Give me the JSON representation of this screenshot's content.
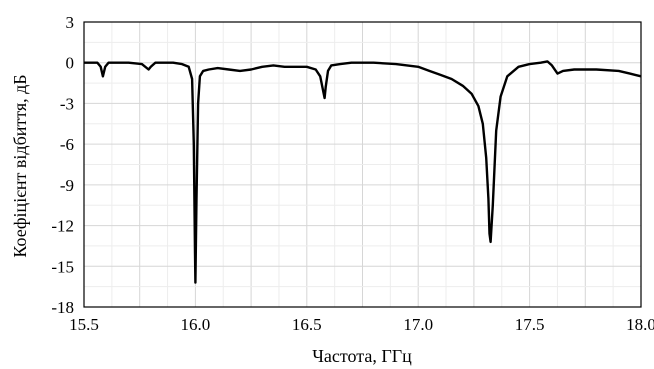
{
  "chart_data": {
    "type": "line",
    "title": "",
    "xlabel": "Частота, ГГц",
    "ylabel": "Коефіцієнт відбиття, дБ",
    "xlim": [
      15.5,
      18.0
    ],
    "ylim": [
      -18,
      3
    ],
    "xticks": [
      15.5,
      15.75,
      16.0,
      16.25,
      16.5,
      16.75,
      17.0,
      17.25,
      17.5,
      17.75,
      18.0
    ],
    "xtick_labels": [
      "15.5",
      "",
      "16.0",
      "",
      "16.5",
      "",
      "17.0",
      "",
      "17.5",
      "",
      "18.0"
    ],
    "yticks": [
      3,
      0,
      -3,
      -6,
      -9,
      -12,
      -15,
      -18
    ],
    "ytick_labels": [
      "3",
      "0",
      "-3",
      "-6",
      "-9",
      "-12",
      "-15",
      "-18"
    ],
    "grid": true,
    "series": [
      {
        "color": "#000000",
        "x": [
          15.5,
          15.56,
          15.575,
          15.585,
          15.595,
          15.61,
          15.65,
          15.7,
          15.76,
          15.79,
          15.8,
          15.82,
          15.85,
          15.9,
          15.94,
          15.97,
          15.985,
          15.993,
          15.998,
          16.0,
          16.005,
          16.012,
          16.02,
          16.035,
          16.06,
          16.1,
          16.15,
          16.2,
          16.25,
          16.3,
          16.35,
          16.4,
          16.45,
          16.5,
          16.54,
          16.56,
          16.575,
          16.58,
          16.585,
          16.595,
          16.61,
          16.65,
          16.7,
          16.8,
          16.9,
          17.0,
          17.05,
          17.1,
          17.15,
          17.2,
          17.24,
          17.27,
          17.29,
          17.305,
          17.315,
          17.32,
          17.325,
          17.335,
          17.35,
          17.37,
          17.4,
          17.45,
          17.5,
          17.55,
          17.58,
          17.6,
          17.625,
          17.65,
          17.7,
          17.8,
          17.9,
          17.95,
          18.0
        ],
        "values": [
          0,
          0,
          -0.3,
          -1.0,
          -0.3,
          0,
          0,
          0,
          -0.1,
          -0.5,
          -0.3,
          0,
          0,
          0,
          -0.1,
          -0.3,
          -1.2,
          -6.0,
          -14.0,
          -16.2,
          -10.0,
          -3.0,
          -1.0,
          -0.6,
          -0.5,
          -0.4,
          -0.5,
          -0.6,
          -0.5,
          -0.3,
          -0.2,
          -0.3,
          -0.3,
          -0.3,
          -0.5,
          -1.0,
          -2.2,
          -2.6,
          -1.8,
          -0.6,
          -0.2,
          -0.1,
          0,
          0,
          -0.1,
          -0.3,
          -0.6,
          -0.9,
          -1.2,
          -1.7,
          -2.3,
          -3.2,
          -4.5,
          -7.0,
          -10.0,
          -12.6,
          -13.2,
          -10.5,
          -5.0,
          -2.5,
          -1.0,
          -0.3,
          -0.1,
          0,
          0.1,
          -0.2,
          -0.8,
          -0.6,
          -0.5,
          -0.5,
          -0.6,
          -0.8,
          -1.0
        ]
      }
    ]
  }
}
